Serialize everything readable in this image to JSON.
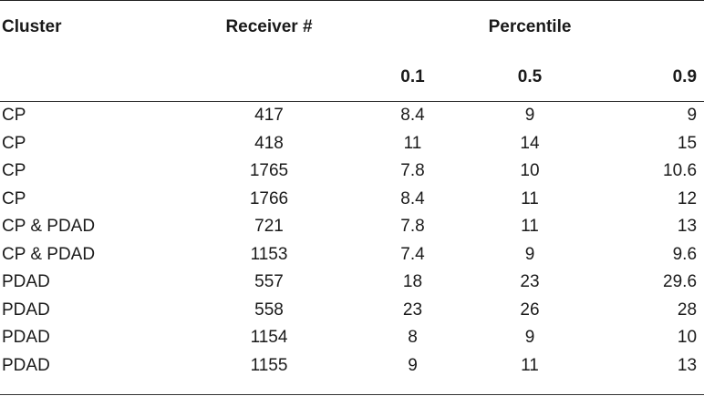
{
  "header": {
    "cluster": "Cluster",
    "receiver": "Receiver #",
    "percentile": "Percentile",
    "p1": "0.1",
    "p2": "0.5",
    "p3": "0.9"
  },
  "rows": [
    {
      "cluster": "CP",
      "receiver": "417",
      "p1": "8.4",
      "p2": "9",
      "p3": "9"
    },
    {
      "cluster": "CP",
      "receiver": "418",
      "p1": "11",
      "p2": "14",
      "p3": "15"
    },
    {
      "cluster": "CP",
      "receiver": "1765",
      "p1": "7.8",
      "p2": "10",
      "p3": "10.6"
    },
    {
      "cluster": "CP",
      "receiver": "1766",
      "p1": "8.4",
      "p2": "11",
      "p3": "12"
    },
    {
      "cluster": "CP & PDAD",
      "receiver": "721",
      "p1": "7.8",
      "p2": "11",
      "p3": "13"
    },
    {
      "cluster": "CP & PDAD",
      "receiver": "1153",
      "p1": "7.4",
      "p2": "9",
      "p3": "9.6"
    },
    {
      "cluster": "PDAD",
      "receiver": "557",
      "p1": "18",
      "p2": "23",
      "p3": "29.6"
    },
    {
      "cluster": "PDAD",
      "receiver": "558",
      "p1": "23",
      "p2": "26",
      "p3": "28"
    },
    {
      "cluster": "PDAD",
      "receiver": "1154",
      "p1": "8",
      "p2": "9",
      "p3": "10"
    },
    {
      "cluster": "PDAD",
      "receiver": "1155",
      "p1": "9",
      "p2": "11",
      "p3": "13"
    }
  ]
}
